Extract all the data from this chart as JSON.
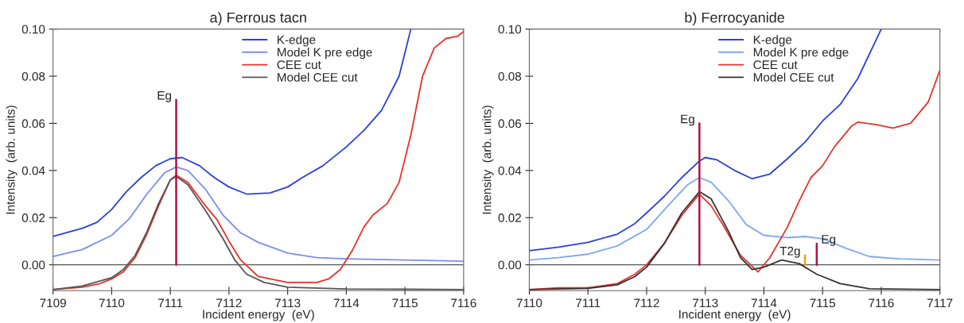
{
  "chart_data": [
    {
      "type": "line",
      "title": "a) Ferrous tacn",
      "xlabel": "Incident energy  (eV)",
      "ylabel": "Intensity  (arb. units)",
      "xlim": [
        7109,
        7116
      ],
      "xticks": [
        7109,
        7110,
        7111,
        7112,
        7113,
        7114,
        7115,
        7116
      ],
      "ylim": [
        -0.011,
        0.1
      ],
      "yticks": [
        {
          "value": 0,
          "label": "0.00"
        },
        {
          "value": 0.02,
          "label": "0.02"
        },
        {
          "value": 0.04,
          "label": "0.04"
        },
        {
          "value": 0.06,
          "label": "0.06"
        },
        {
          "value": 0.08,
          "label": "0.08"
        },
        {
          "value": 0.1,
          "label": "0.10"
        }
      ],
      "legend": "top",
      "grid": false,
      "ref_lines": [
        {
          "axis": "y",
          "value": 0,
          "color": "#555555"
        }
      ],
      "annotations": [
        {
          "text": "Eg",
          "x": 7111.1,
          "y": 0.07
        }
      ],
      "series": [
        {
          "name": "K-edge",
          "color": "#2b3fe0",
          "x": [
            7109,
            7109.5,
            7109.75,
            7110,
            7110.25,
            7110.5,
            7110.75,
            7111,
            7111.2,
            7111.5,
            7111.75,
            7112,
            7112.3,
            7112.7,
            7113,
            7113.25,
            7113.6,
            7114,
            7114.3,
            7114.6,
            7114.9,
            7115.1
          ],
          "values": [
            0.012,
            0.0155,
            0.018,
            0.0235,
            0.031,
            0.037,
            0.042,
            0.045,
            0.0455,
            0.042,
            0.037,
            0.033,
            0.03,
            0.0305,
            0.033,
            0.037,
            0.042,
            0.05,
            0.057,
            0.0655,
            0.08,
            0.1
          ]
        },
        {
          "name": "Model K pre edge",
          "color": "#7b8cf5",
          "x": [
            7109,
            7109.5,
            7110,
            7110.3,
            7110.6,
            7110.9,
            7111.1,
            7111.3,
            7111.6,
            7111.9,
            7112.2,
            7112.5,
            7113,
            7113.5,
            7114,
            7115,
            7116
          ],
          "values": [
            0.0035,
            0.0065,
            0.0125,
            0.0195,
            0.03,
            0.039,
            0.0415,
            0.04,
            0.032,
            0.021,
            0.0135,
            0.0095,
            0.005,
            0.003,
            0.0025,
            0.002,
            0.0015
          ]
        },
        {
          "name": "CEE cut",
          "color": "#e8322a",
          "x": [
            7109,
            7109.5,
            7109.8,
            7110,
            7110.2,
            7110.4,
            7110.6,
            7110.8,
            7111,
            7111.1,
            7111.3,
            7111.6,
            7111.8,
            7112,
            7112.2,
            7112.5,
            7112.8,
            7113,
            7113.5,
            7113.7,
            7113.9,
            7114.1,
            7114.3,
            7114.45,
            7114.7,
            7114.9,
            7115.1,
            7115.3,
            7115.5,
            7115.7,
            7115.9,
            7116
          ],
          "values": [
            -0.0105,
            -0.0095,
            -0.008,
            -0.006,
            -0.003,
            0.003,
            0.013,
            0.025,
            0.036,
            0.038,
            0.035,
            0.025,
            0.019,
            0.01,
            0.002,
            -0.005,
            -0.0065,
            -0.0075,
            -0.0075,
            -0.006,
            -0.002,
            0.006,
            0.016,
            0.021,
            0.026,
            0.035,
            0.055,
            0.08,
            0.092,
            0.096,
            0.097,
            0.099
          ]
        },
        {
          "name": "Model CEE cut",
          "color": "#555555",
          "x": [
            7109,
            7109.5,
            7110,
            7110.2,
            7110.4,
            7110.6,
            7110.8,
            7111,
            7111.1,
            7111.3,
            7111.6,
            7111.9,
            7112.1,
            7112.3,
            7112.6,
            7113,
            7114,
            7116
          ],
          "values": [
            -0.0105,
            -0.009,
            -0.0055,
            -0.002,
            0.004,
            0.014,
            0.026,
            0.036,
            0.0375,
            0.034,
            0.023,
            0.011,
            0.002,
            -0.004,
            -0.0075,
            -0.0095,
            -0.0103,
            -0.0105
          ]
        },
        {
          "color": "#b0123f",
          "x": [
            7111.1,
            7111.1
          ],
          "values": [
            0,
            0.07
          ]
        }
      ]
    },
    {
      "type": "line",
      "title": "b) Ferrocyanide",
      "xlabel": "Incident energy  (eV)",
      "ylabel": "Intensity  (arb. units)",
      "xlim": [
        7110,
        7117
      ],
      "xticks": [
        7110,
        7111,
        7112,
        7113,
        7114,
        7115,
        7116,
        7117
      ],
      "ylim": [
        -0.011,
        0.1
      ],
      "yticks": [
        {
          "value": 0,
          "label": "0.00"
        },
        {
          "value": 0.02,
          "label": "0.02"
        },
        {
          "value": 0.04,
          "label": "0.04"
        },
        {
          "value": 0.06,
          "label": "0.06"
        },
        {
          "value": 0.08,
          "label": "0.08"
        },
        {
          "value": 0.1,
          "label": "0.10"
        }
      ],
      "legend": "top",
      "grid": false,
      "ref_lines": [
        {
          "axis": "y",
          "value": 0,
          "color": "#555555"
        }
      ],
      "annotations": [
        {
          "text": "Eg",
          "x": 7112.9,
          "y": 0.06
        },
        {
          "text": "T2g",
          "x": 7114.7,
          "y": 0.004
        },
        {
          "text": "Eg",
          "x": 7114.9,
          "y": 0.009
        }
      ],
      "series": [
        {
          "name": "K-edge",
          "color": "#2b3fe0",
          "x": [
            7110,
            7110.5,
            7111,
            7111.5,
            7111.8,
            7112,
            7112.3,
            7112.6,
            7112.9,
            7113,
            7113.2,
            7113.5,
            7113.8,
            7114.1,
            7114.4,
            7114.7,
            7115,
            7115.3,
            7115.6,
            7116
          ],
          "values": [
            0.006,
            0.0075,
            0.0095,
            0.013,
            0.0175,
            0.022,
            0.029,
            0.037,
            0.044,
            0.0455,
            0.0445,
            0.04,
            0.0365,
            0.0385,
            0.045,
            0.052,
            0.061,
            0.068,
            0.079,
            0.1
          ]
        },
        {
          "name": "Model K pre edge",
          "color": "#7fa7f5",
          "x": [
            7110,
            7110.5,
            7111,
            7111.5,
            7112,
            7112.4,
            7112.7,
            7112.9,
            7113.1,
            7113.4,
            7113.7,
            7114,
            7114.4,
            7114.7,
            7115,
            7115.4,
            7115.8,
            7116.3,
            7117
          ],
          "values": [
            0.002,
            0.003,
            0.0045,
            0.008,
            0.015,
            0.026,
            0.034,
            0.037,
            0.035,
            0.027,
            0.017,
            0.0125,
            0.0115,
            0.012,
            0.011,
            0.007,
            0.0035,
            0.0025,
            0.002
          ]
        },
        {
          "name": "CEE cut",
          "color": "#e8322a",
          "x": [
            7110,
            7110.5,
            7111,
            7111.5,
            7111.8,
            7112,
            7112.3,
            7112.6,
            7112.9,
            7113.1,
            7113.3,
            7113.6,
            7113.9,
            7114.1,
            7114.4,
            7114.6,
            7114.8,
            7115,
            7115.2,
            7115.5,
            7115.6,
            7115.9,
            7116.2,
            7116.5,
            7116.8,
            7117
          ],
          "values": [
            -0.0105,
            -0.0098,
            -0.0098,
            -0.008,
            -0.004,
            0.0,
            0.009,
            0.021,
            0.03,
            0.025,
            0.017,
            0.004,
            -0.003,
            0.003,
            0.016,
            0.027,
            0.037,
            0.042,
            0.05,
            0.059,
            0.0605,
            0.0595,
            0.058,
            0.06,
            0.069,
            0.0825
          ]
        },
        {
          "name": "Model CEE cut",
          "color": "#333333",
          "x": [
            7110,
            7111,
            7111.5,
            7111.8,
            7112,
            7112.3,
            7112.6,
            7112.9,
            7113.1,
            7113.4,
            7113.6,
            7113.8,
            7114,
            7114.3,
            7114.6,
            7114.9,
            7115.3,
            7115.8,
            7117
          ],
          "values": [
            -0.0105,
            -0.01,
            -0.0085,
            -0.005,
            -0.001,
            0.009,
            0.022,
            0.031,
            0.028,
            0.014,
            0.003,
            -0.002,
            -0.001,
            0.002,
            0.0005,
            -0.004,
            -0.008,
            -0.0102,
            -0.0105
          ]
        },
        {
          "color": "#b0123f",
          "x": [
            7112.9,
            7112.9
          ],
          "values": [
            0,
            0.06
          ]
        },
        {
          "color": "#f0a020",
          "x": [
            7114.7,
            7114.7
          ],
          "values": [
            0,
            0.004
          ]
        },
        {
          "color": "#b0123f",
          "x": [
            7114.9,
            7114.9
          ],
          "values": [
            0,
            0.009
          ]
        }
      ]
    }
  ]
}
